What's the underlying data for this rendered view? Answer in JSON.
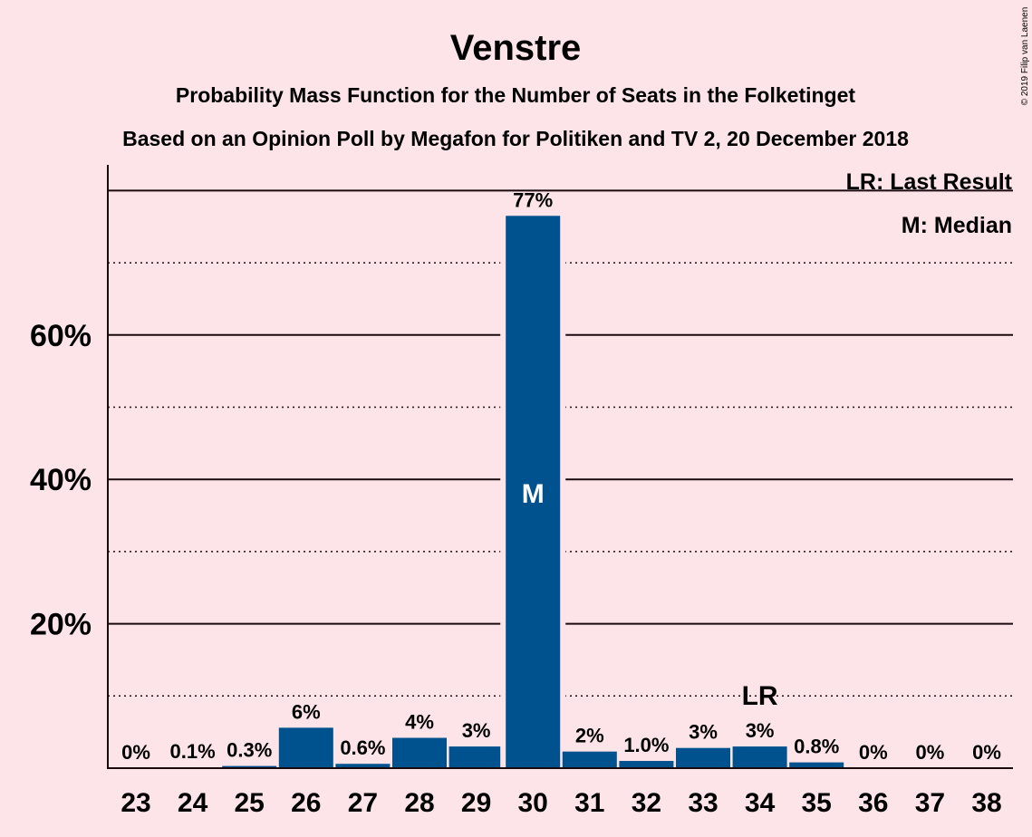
{
  "chart_data": {
    "type": "bar",
    "title": "Venstre",
    "subtitle": "Probability Mass Function for the Number of Seats in the Folketinget",
    "subtitle2": "Based on an Opinion Poll by Megafon for Politiken and TV 2, 20 December 2018",
    "copyright": "© 2019 Filip van Laenen",
    "legend": [
      "LR: Last Result",
      "M: Median"
    ],
    "legend_position": "top-right",
    "categories": [
      "23",
      "24",
      "25",
      "26",
      "27",
      "28",
      "29",
      "30",
      "31",
      "32",
      "33",
      "34",
      "35",
      "36",
      "37",
      "38"
    ],
    "values": [
      0,
      0.1,
      0.3,
      5.6,
      0.6,
      4.2,
      3.0,
      76.5,
      2.3,
      1.0,
      2.8,
      3.0,
      0.8,
      0,
      0,
      0
    ],
    "labels": [
      "0%",
      "0.1%",
      "0.3%",
      "6%",
      "0.6%",
      "4%",
      "3%",
      "77%",
      "2%",
      "1.0%",
      "3%",
      "3%",
      "0.8%",
      "0%",
      "0%",
      "0%"
    ],
    "yticks": [
      20,
      40,
      60
    ],
    "ytick_labels": [
      "20%",
      "40%",
      "60%"
    ],
    "ylim": [
      0,
      83
    ],
    "grid": "solid major every 20%, dotted minor every 10%",
    "median_index": 7,
    "median_marker": "M",
    "last_result_index": 11,
    "last_result_marker": "LR",
    "bar_color": "#00528f",
    "background_color": "#fde4e8"
  }
}
